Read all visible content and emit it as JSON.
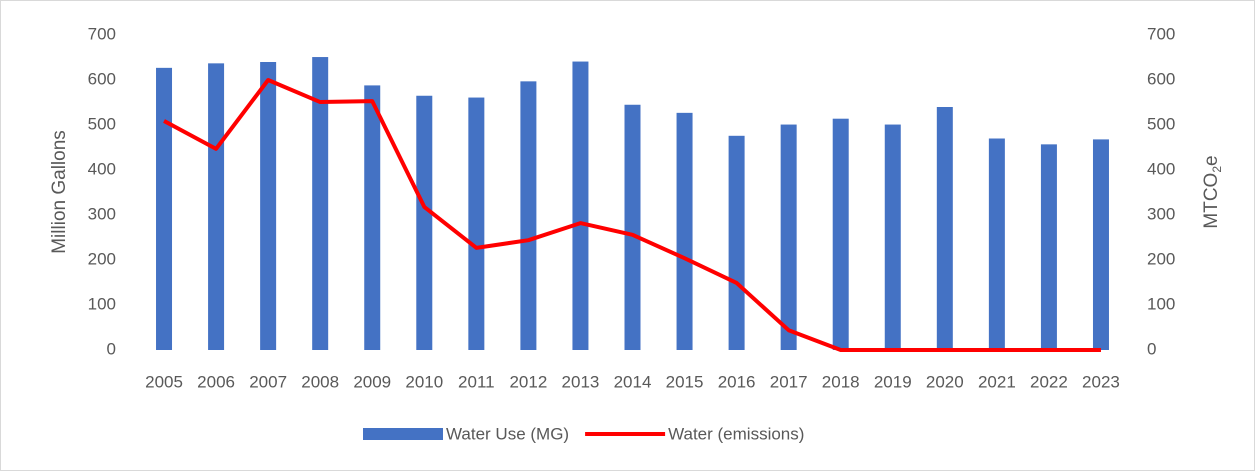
{
  "chart_data": {
    "type": "combo",
    "y_label": "Million  Gallons",
    "y2_label": [
      "MTCO",
      "2",
      "e"
    ],
    "categories": [
      "2005",
      "2006",
      "2007",
      "2008",
      "2009",
      "2010",
      "2011",
      "2012",
      "2013",
      "2014",
      "2015",
      "2016",
      "2017",
      "2018",
      "2019",
      "2020",
      "2021",
      "2022",
      "2023"
    ],
    "series": [
      {
        "name": "Water Use (MG)",
        "type": "bar",
        "color": "#4472c4",
        "values": [
          627,
          637,
          640,
          651,
          588,
          565,
          561,
          597,
          641,
          545,
          527,
          476,
          501,
          514,
          501,
          540,
          470,
          457,
          468
        ]
      },
      {
        "name": "Water (emissions)",
        "type": "line",
        "axis": "y2",
        "color": "#ff0000",
        "values": [
          509,
          447,
          600,
          551,
          553,
          318,
          227,
          244,
          282,
          256,
          204,
          149,
          44,
          0,
          0,
          0,
          0,
          0,
          0
        ]
      }
    ],
    "ylim": [
      0,
      700
    ],
    "yticks": [
      0,
      100,
      200,
      300,
      400,
      500,
      600,
      700
    ],
    "y2lim": [
      0,
      700
    ],
    "y2ticks": [
      0,
      100,
      200,
      300,
      400,
      500,
      600,
      700
    ],
    "grid": false,
    "legend": "bottom"
  }
}
